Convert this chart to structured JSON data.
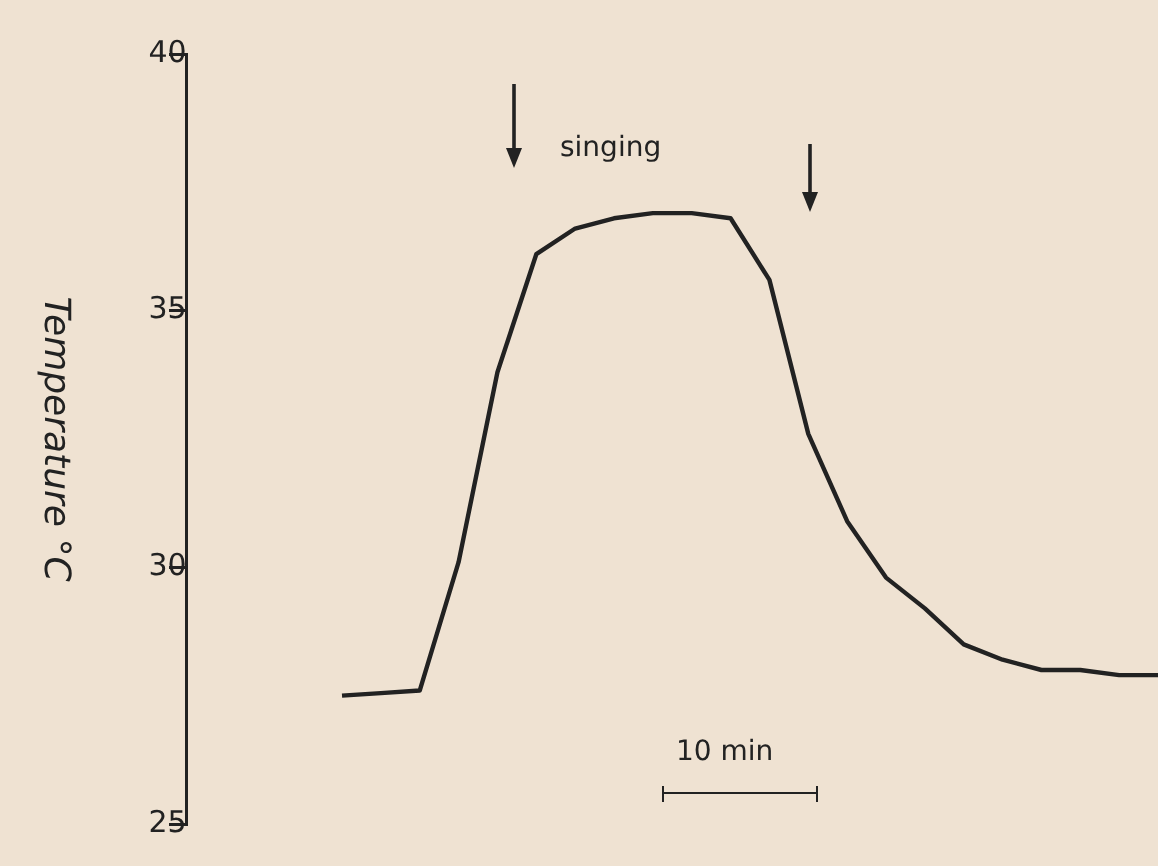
{
  "chart_data": {
    "type": "line",
    "ylabel": "Temperature °C",
    "annotations": [
      "singing",
      "10 min"
    ],
    "categories": [
      null,
      null,
      null,
      null,
      null,
      null,
      null,
      null,
      null,
      null,
      null,
      null,
      null,
      null,
      null,
      null,
      null,
      null,
      null,
      null,
      null,
      null
    ],
    "series": [
      {
        "color": "#222222",
        "values": [
          27.5,
          27.55,
          27.6,
          30.1,
          33.8,
          36.1,
          36.6,
          36.8,
          36.9,
          36.9,
          36.8,
          35.6,
          32.6,
          30.9,
          29.8,
          29.2,
          28.5,
          28.2,
          28.0,
          28.0,
          27.9,
          27.9
        ]
      }
    ],
    "ylim": [
      25,
      40
    ],
    "yticks": [
      25,
      30,
      35,
      40
    ],
    "tick_labels": "y",
    "grid": false,
    "legend": false,
    "marker": "none",
    "line_style": "solid"
  }
}
